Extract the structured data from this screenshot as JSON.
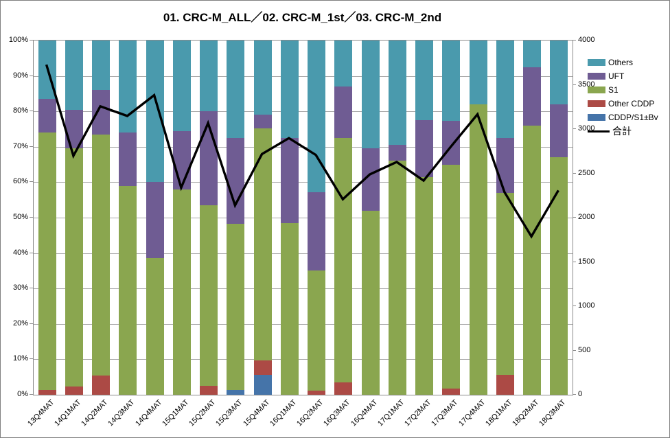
{
  "title": "01. CRC-M_ALL／02. CRC-M_1st／03. CRC-M_2nd",
  "chart_data": {
    "type": "bar",
    "subtype": "100-percent-stacked-bars-with-total-line",
    "title": "01. CRC-M_ALL／02. CRC-M_1st／03. CRC-M_2nd",
    "categories": [
      "13Q4MAT",
      "14Q1MAT",
      "14Q2MAT",
      "14Q3MAT",
      "14Q4MAT",
      "15Q1MAT",
      "15Q2MAT",
      "15Q3MAT",
      "15Q4MAT",
      "16Q1MAT",
      "16Q2MAT",
      "16Q3MAT",
      "16Q4MAT",
      "17Q1MAT",
      "17Q2MAT",
      "17Q3MAT",
      "17Q4MAT",
      "18Q1MAT",
      "18Q2MAT",
      "18Q3MAT"
    ],
    "series": [
      {
        "name": "CDDP/S1±Bv",
        "color": "#4574A9",
        "unit": "percent",
        "values": [
          0,
          0,
          0,
          0,
          0,
          0,
          0,
          1.4,
          5.7,
          0,
          0,
          0,
          0,
          0,
          0,
          0,
          0,
          0,
          0,
          0
        ]
      },
      {
        "name": "Other CDDP",
        "color": "#AC4A45",
        "unit": "percent",
        "values": [
          1.3,
          2.4,
          5.5,
          0,
          0,
          0,
          2.6,
          0,
          3.9,
          0,
          1.2,
          3.4,
          0,
          0,
          0,
          1.7,
          0,
          5.7,
          0,
          0
        ]
      },
      {
        "name": "S1",
        "color": "#8AA64F",
        "unit": "percent",
        "values": [
          72.7,
          67.1,
          68,
          59,
          38.5,
          58,
          50.9,
          46.8,
          65.6,
          48.4,
          33.8,
          69,
          52,
          66,
          61.5,
          63.3,
          82,
          51.3,
          76,
          67
        ]
      },
      {
        "name": "UFT",
        "color": "#6F5C93",
        "unit": "percent",
        "values": [
          9.5,
          11,
          12.5,
          15,
          21.5,
          16.5,
          26.5,
          24.2,
          3.8,
          24,
          22.1,
          14.6,
          17.5,
          4.5,
          16,
          12.3,
          0,
          15.4,
          16.5,
          15
        ]
      },
      {
        "name": "Others",
        "color": "#4A9AAD",
        "unit": "percent",
        "values": [
          16.5,
          19.5,
          14,
          26,
          40,
          25.5,
          20,
          27.6,
          21,
          27.6,
          42.9,
          13,
          30.5,
          29.5,
          22.5,
          22.7,
          18,
          27.6,
          7.5,
          18
        ]
      }
    ],
    "line_series": {
      "name": "合計",
      "color": "#000000",
      "axis": "right",
      "values": [
        3720,
        2690,
        3250,
        3140,
        3375,
        2330,
        3060,
        2130,
        2710,
        2890,
        2700,
        2200,
        2480,
        2620,
        2410,
        2790,
        3160,
        2280,
        1780,
        2300
      ]
    },
    "left_axis": {
      "min": 0,
      "max": 100,
      "tick_labels": [
        "100%",
        "90%",
        "80%",
        "70%",
        "60%",
        "50%",
        "40%",
        "30%",
        "20%",
        "10%",
        "0%"
      ]
    },
    "right_axis": {
      "min": 0,
      "max": 4000,
      "tick_labels": [
        "4000",
        "3500",
        "3000",
        "2500",
        "2000",
        "1500",
        "1000",
        "500",
        "0"
      ]
    },
    "legend": [
      {
        "label": "Others",
        "color": "#4A9AAD",
        "kind": "box"
      },
      {
        "label": "UFT",
        "color": "#6F5C93",
        "kind": "box"
      },
      {
        "label": "S1",
        "color": "#8AA64F",
        "kind": "box"
      },
      {
        "label": "Other CDDP",
        "color": "#AC4A45",
        "kind": "box"
      },
      {
        "label": "CDDP/S1±Bv",
        "color": "#4574A9",
        "kind": "box"
      },
      {
        "label": "合計",
        "color": "#000000",
        "kind": "line"
      }
    ],
    "grid": true,
    "legend_position": "right"
  }
}
